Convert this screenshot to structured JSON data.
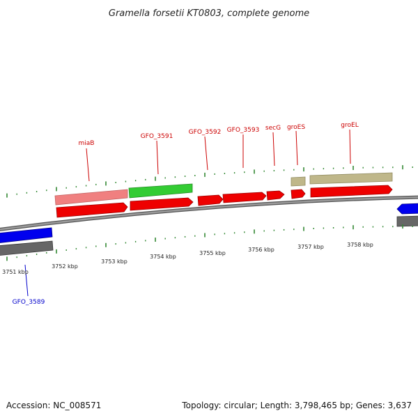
{
  "title": "Gramella forsetii KT0803, complete genome",
  "footer": {
    "accession": "Accession: NC_008571",
    "summary": "Topology: circular; Length: 3,798,465 bp; Genes: 3,637"
  },
  "colors": {
    "forward_cds": "#ff0000",
    "reverse_cds": "#0000ff",
    "trna": "#f08080",
    "special_gene": "#33cc33",
    "chaperone": "#bfb78a",
    "backbone": "#777777",
    "forward_label": "#cc0000",
    "reverse_label": "#0000cc",
    "tick": "#338833"
  },
  "scale_labels": [
    "3751 kbp",
    "3752 kbp",
    "3753 kbp",
    "3754 kbp",
    "3755 kbp",
    "3756 kbp",
    "3757 kbp",
    "3758 kbp"
  ],
  "gene_labels": [
    {
      "id": "miab",
      "text": "miaB",
      "strand": "forward"
    },
    {
      "id": "gfo3591",
      "text": "GFO_3591",
      "strand": "forward"
    },
    {
      "id": "gfo3592",
      "text": "GFO_3592",
      "strand": "forward"
    },
    {
      "id": "gfo3593",
      "text": "GFO_3593",
      "strand": "forward"
    },
    {
      "id": "secg",
      "text": "secG",
      "strand": "forward"
    },
    {
      "id": "groes",
      "text": "groES",
      "strand": "forward"
    },
    {
      "id": "groel",
      "text": "groEL",
      "strand": "forward"
    },
    {
      "id": "gfo3589",
      "text": "GFO_3589",
      "strand": "reverse"
    }
  ]
}
